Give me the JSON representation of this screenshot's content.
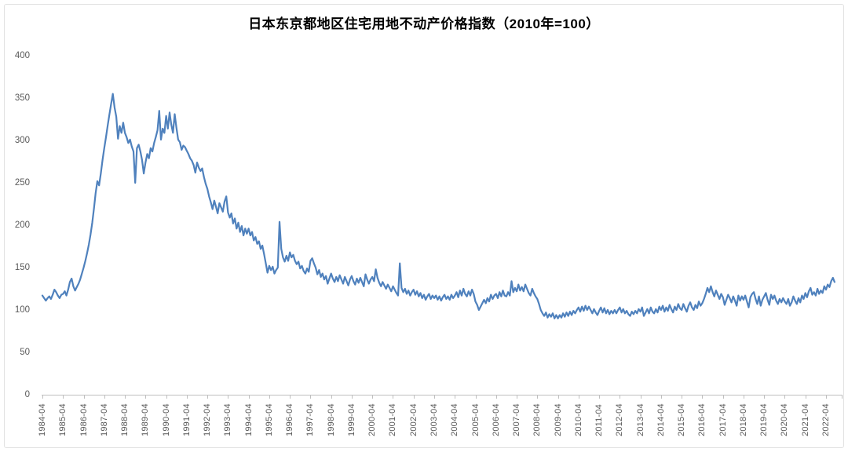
{
  "title": "日本东京都地区住宅用地不动产价格指数（2010年=100）",
  "chart_data": {
    "type": "line",
    "title": "日本东京都地区住宅用地不动产价格指数（2010年=100）",
    "xlabel": "",
    "ylabel": "",
    "ylim": [
      0,
      400
    ],
    "y_ticks": [
      0,
      50,
      100,
      150,
      200,
      250,
      300,
      350,
      400
    ],
    "x_tick_labels": [
      "1984-04",
      "1985-04",
      "1986-04",
      "1987-04",
      "1988-04",
      "1989-04",
      "1990-04",
      "1991-04",
      "1992-04",
      "1993-04",
      "1994-04",
      "1995-04",
      "1996-04",
      "1997-04",
      "1998-04",
      "1999-04",
      "2000-04",
      "2001-04",
      "2002-04",
      "2003-04",
      "2004-04",
      "2005-04",
      "2006-04",
      "2007-04",
      "2008-04",
      "2009-04",
      "2010-04",
      "2011-04",
      "2012-04",
      "2013-04",
      "2014-04",
      "2015-04",
      "2016-04",
      "2017-04",
      "2018-04",
      "2019-04",
      "2020-04",
      "2021-04",
      "2022-04"
    ],
    "x_start": "1984-04",
    "frequency": "monthly",
    "months_per_tick": 12,
    "grid": false,
    "legend": "none",
    "line_color": "#4F81BD",
    "axis_color": "#bfbfbf",
    "label_color": "#595959",
    "values": [
      117,
      114,
      111,
      114,
      116,
      113,
      118,
      124,
      121,
      117,
      114,
      118,
      119,
      122,
      117,
      124,
      133,
      137,
      128,
      123,
      127,
      131,
      136,
      143,
      150,
      158,
      167,
      177,
      189,
      203,
      220,
      238,
      252,
      247,
      261,
      277,
      291,
      304,
      318,
      331,
      343,
      355,
      339,
      328,
      302,
      317,
      309,
      321,
      309,
      304,
      297,
      301,
      293,
      287,
      250,
      291,
      295,
      287,
      277,
      261,
      274,
      284,
      279,
      291,
      287,
      297,
      304,
      312,
      335,
      301,
      314,
      309,
      329,
      314,
      333,
      319,
      309,
      331,
      315,
      301,
      298,
      289,
      294,
      292,
      288,
      284,
      279,
      276,
      271,
      262,
      274,
      268,
      264,
      267,
      257,
      249,
      243,
      234,
      227,
      219,
      229,
      222,
      214,
      226,
      221,
      216,
      228,
      234,
      215,
      209,
      214,
      202,
      208,
      196,
      203,
      192,
      199,
      188,
      196,
      190,
      196,
      188,
      192,
      182,
      186,
      178,
      181,
      172,
      176,
      166,
      155,
      144,
      152,
      147,
      151,
      143,
      147,
      150,
      204,
      172,
      162,
      157,
      164,
      158,
      168,
      162,
      165,
      158,
      154,
      157,
      149,
      152,
      146,
      143,
      149,
      145,
      158,
      161,
      155,
      150,
      142,
      147,
      139,
      143,
      136,
      140,
      131,
      137,
      143,
      137,
      133,
      139,
      134,
      141,
      136,
      131,
      139,
      134,
      129,
      136,
      140,
      134,
      130,
      137,
      132,
      138,
      133,
      128,
      142,
      136,
      131,
      136,
      139,
      134,
      148,
      138,
      132,
      128,
      133,
      129,
      125,
      130,
      126,
      122,
      128,
      124,
      120,
      117,
      155,
      126,
      121,
      125,
      119,
      123,
      117,
      121,
      124,
      118,
      122,
      116,
      120,
      114,
      118,
      112,
      116,
      119,
      113,
      117,
      114,
      117,
      112,
      116,
      111,
      115,
      118,
      113,
      116,
      112,
      118,
      114,
      117,
      121,
      115,
      123,
      117,
      125,
      119,
      116,
      122,
      117,
      124,
      119,
      110,
      106,
      100,
      104,
      108,
      112,
      108,
      114,
      110,
      118,
      113,
      117,
      119,
      114,
      121,
      116,
      123,
      117,
      116,
      121,
      117,
      134,
      121,
      126,
      122,
      130,
      123,
      127,
      122,
      130,
      125,
      120,
      117,
      125,
      120,
      116,
      113,
      107,
      100,
      96,
      93,
      97,
      91,
      95,
      92,
      96,
      90,
      94,
      90,
      94,
      91,
      96,
      92,
      97,
      93,
      98,
      94,
      99,
      96,
      100,
      103,
      98,
      104,
      99,
      105,
      100,
      104,
      100,
      96,
      101,
      97,
      94,
      99,
      103,
      97,
      102,
      96,
      100,
      95,
      99,
      96,
      100,
      96,
      100,
      103,
      97,
      101,
      96,
      99,
      95,
      93,
      98,
      95,
      99,
      96,
      101,
      98,
      103,
      93,
      97,
      101,
      96,
      103,
      98,
      96,
      101,
      97,
      104,
      100,
      105,
      98,
      103,
      99,
      106,
      101,
      97,
      104,
      100,
      107,
      102,
      100,
      107,
      102,
      98,
      105,
      109,
      103,
      100,
      106,
      102,
      110,
      105,
      108,
      113,
      119,
      126,
      121,
      128,
      121,
      116,
      123,
      118,
      113,
      119,
      115,
      106,
      112,
      118,
      114,
      109,
      116,
      111,
      105,
      117,
      111,
      116,
      112,
      117,
      110,
      103,
      115,
      119,
      121,
      113,
      107,
      116,
      105,
      112,
      116,
      120,
      112,
      106,
      118,
      113,
      117,
      111,
      107,
      113,
      109,
      114,
      110,
      107,
      113,
      105,
      109,
      116,
      111,
      107,
      114,
      109,
      117,
      113,
      120,
      115,
      122,
      126,
      118,
      121,
      117,
      125,
      119,
      123,
      120,
      128,
      124,
      130,
      127,
      134,
      138,
      133
    ]
  }
}
